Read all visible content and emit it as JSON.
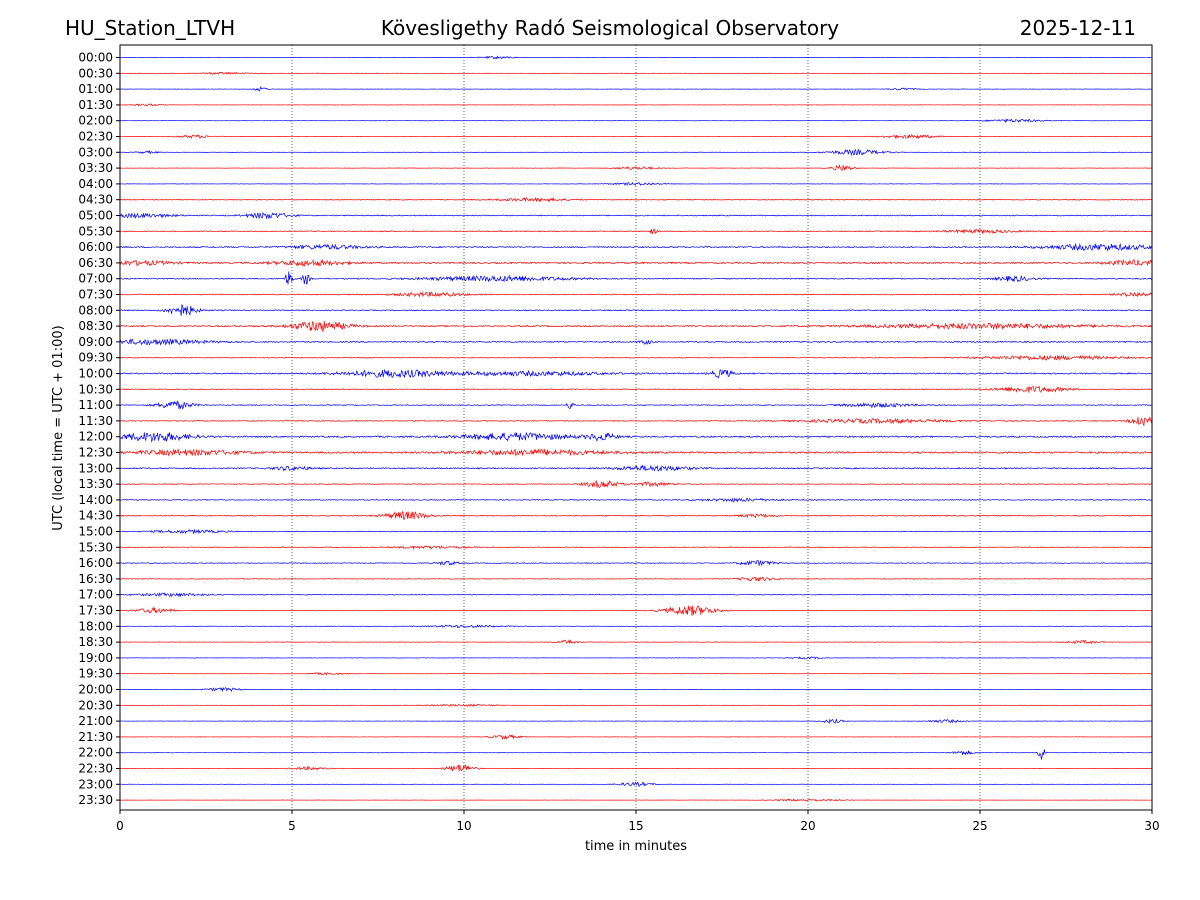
{
  "header": {
    "station": "HU_Station_LTVH",
    "observatory": "Kövesligethy Radó Seismological Observatory",
    "date": "2025-12-11"
  },
  "chart_data": {
    "type": "line",
    "title": "Kövesligethy Radó Seismological Observatory",
    "xlabel": "time in minutes",
    "ylabel": "UTC (local time = UTC + 01:00)",
    "xlim": [
      0,
      30
    ],
    "x_ticks": [
      "0",
      "5",
      "10",
      "15",
      "20",
      "25",
      "30"
    ],
    "x_tick_values": [
      0,
      5,
      10,
      15,
      20,
      25,
      30
    ],
    "grid": "vertical dotted at each x tick",
    "colors": {
      "even_row": "#0000ff",
      "odd_row": "#ff0000",
      "axes": "#000000"
    },
    "rows": [
      {
        "label": "00:00",
        "noise": 0.15,
        "events": [
          [
            11.0,
            0.5,
            1.2
          ]
        ]
      },
      {
        "label": "00:30",
        "noise": 0.15,
        "events": [
          [
            3.0,
            0.6,
            1.0
          ]
        ]
      },
      {
        "label": "01:00",
        "noise": 0.15,
        "events": [
          [
            4.1,
            0.2,
            2.0
          ],
          [
            22.8,
            0.4,
            1.0
          ]
        ]
      },
      {
        "label": "01:30",
        "noise": 0.15,
        "events": [
          [
            0.8,
            0.4,
            1.0
          ]
        ]
      },
      {
        "label": "02:00",
        "noise": 0.15,
        "events": [
          [
            26.0,
            0.8,
            1.5
          ]
        ]
      },
      {
        "label": "02:30",
        "noise": 0.18,
        "events": [
          [
            2.2,
            0.5,
            1.5
          ],
          [
            23.0,
            0.8,
            1.8
          ]
        ]
      },
      {
        "label": "03:00",
        "noise": 0.2,
        "events": [
          [
            21.4,
            0.8,
            2.5
          ],
          [
            0.8,
            0.3,
            1.2
          ]
        ]
      },
      {
        "label": "03:30",
        "noise": 0.2,
        "events": [
          [
            21.0,
            0.3,
            3.0
          ],
          [
            15.0,
            0.6,
            1.5
          ]
        ]
      },
      {
        "label": "04:00",
        "noise": 0.18,
        "events": [
          [
            15.0,
            0.8,
            1.2
          ]
        ]
      },
      {
        "label": "04:30",
        "noise": 0.4,
        "events": [
          [
            12.0,
            1.0,
            1.5
          ]
        ]
      },
      {
        "label": "05:00",
        "noise": 0.5,
        "events": [
          [
            4.3,
            0.6,
            3.0
          ],
          [
            0.5,
            1.0,
            2.0
          ]
        ]
      },
      {
        "label": "05:30",
        "noise": 0.45,
        "events": [
          [
            15.5,
            0.1,
            2.5
          ],
          [
            25.0,
            1.0,
            1.5
          ]
        ]
      },
      {
        "label": "06:00",
        "noise": 0.6,
        "events": [
          [
            28.5,
            1.5,
            3.0
          ],
          [
            6.0,
            1.0,
            2.0
          ]
        ]
      },
      {
        "label": "06:30",
        "noise": 0.7,
        "events": [
          [
            0.5,
            1.0,
            2.0
          ],
          [
            5.5,
            1.0,
            2.5
          ],
          [
            29.5,
            0.8,
            2.5
          ]
        ]
      },
      {
        "label": "07:00",
        "noise": 0.5,
        "events": [
          [
            4.9,
            0.1,
            8.0
          ],
          [
            5.4,
            0.1,
            6.0
          ],
          [
            11.0,
            2.0,
            2.5
          ],
          [
            26.0,
            0.5,
            2.5
          ]
        ]
      },
      {
        "label": "07:30",
        "noise": 0.45,
        "events": [
          [
            9.0,
            1.0,
            2.0
          ],
          [
            29.5,
            0.5,
            2.0
          ]
        ]
      },
      {
        "label": "08:00",
        "noise": 0.5,
        "events": [
          [
            1.8,
            0.4,
            6.0
          ]
        ]
      },
      {
        "label": "08:30",
        "noise": 0.6,
        "events": [
          [
            5.8,
            0.8,
            5.0
          ],
          [
            25.0,
            3.0,
            2.5
          ]
        ]
      },
      {
        "label": "09:00",
        "noise": 0.55,
        "events": [
          [
            1.0,
            1.5,
            2.5
          ],
          [
            15.3,
            0.2,
            2.0
          ]
        ]
      },
      {
        "label": "09:30",
        "noise": 0.35,
        "events": [
          [
            27.0,
            2.0,
            2.0
          ]
        ]
      },
      {
        "label": "10:00",
        "noise": 0.6,
        "events": [
          [
            8.0,
            1.5,
            3.5
          ],
          [
            17.5,
            0.3,
            4.0
          ],
          [
            12.0,
            2.0,
            2.0
          ]
        ]
      },
      {
        "label": "10:30",
        "noise": 0.4,
        "events": [
          [
            26.5,
            1.0,
            3.0
          ]
        ]
      },
      {
        "label": "11:00",
        "noise": 0.4,
        "events": [
          [
            1.6,
            0.5,
            4.0
          ],
          [
            13.1,
            0.1,
            4.0
          ],
          [
            22.0,
            1.0,
            2.0
          ]
        ]
      },
      {
        "label": "11:30",
        "noise": 0.4,
        "events": [
          [
            29.7,
            0.3,
            6.0
          ],
          [
            22.0,
            2.0,
            2.0
          ]
        ]
      },
      {
        "label": "12:00",
        "noise": 0.7,
        "events": [
          [
            1.0,
            1.0,
            4.5
          ],
          [
            11.5,
            1.5,
            3.5
          ],
          [
            14.0,
            0.4,
            3.5
          ]
        ]
      },
      {
        "label": "12:30",
        "noise": 0.8,
        "events": [
          [
            2.0,
            1.5,
            2.5
          ],
          [
            12.0,
            2.0,
            2.5
          ]
        ]
      },
      {
        "label": "13:00",
        "noise": 0.6,
        "events": [
          [
            15.5,
            1.0,
            2.5
          ],
          [
            5.0,
            0.5,
            2.0
          ]
        ]
      },
      {
        "label": "13:30",
        "noise": 0.35,
        "events": [
          [
            14.0,
            0.5,
            3.5
          ],
          [
            15.5,
            0.5,
            2.0
          ]
        ]
      },
      {
        "label": "14:00",
        "noise": 0.4,
        "events": [
          [
            18.0,
            1.0,
            1.5
          ]
        ]
      },
      {
        "label": "14:30",
        "noise": 0.45,
        "events": [
          [
            8.3,
            0.6,
            4.0
          ],
          [
            18.5,
            0.5,
            1.5
          ]
        ]
      },
      {
        "label": "15:00",
        "noise": 0.35,
        "events": [
          [
            2.0,
            1.0,
            1.5
          ]
        ]
      },
      {
        "label": "15:30",
        "noise": 0.35,
        "events": [
          [
            9.0,
            1.0,
            1.2
          ]
        ]
      },
      {
        "label": "16:00",
        "noise": 0.35,
        "events": [
          [
            18.5,
            0.5,
            2.5
          ],
          [
            9.5,
            0.3,
            2.0
          ]
        ]
      },
      {
        "label": "16:30",
        "noise": 0.3,
        "events": [
          [
            18.5,
            0.5,
            2.0
          ]
        ]
      },
      {
        "label": "17:00",
        "noise": 0.3,
        "events": [
          [
            1.5,
            1.0,
            1.5
          ]
        ]
      },
      {
        "label": "17:30",
        "noise": 0.3,
        "events": [
          [
            16.6,
            0.7,
            5.0
          ],
          [
            1.0,
            0.5,
            2.5
          ]
        ]
      },
      {
        "label": "18:00",
        "noise": 0.25,
        "events": [
          [
            10.0,
            1.0,
            1.2
          ]
        ]
      },
      {
        "label": "18:30",
        "noise": 0.2,
        "events": [
          [
            13.0,
            0.3,
            2.0
          ],
          [
            28.0,
            0.5,
            1.5
          ]
        ]
      },
      {
        "label": "19:00",
        "noise": 0.15,
        "events": [
          [
            20.0,
            0.5,
            1.0
          ]
        ]
      },
      {
        "label": "19:30",
        "noise": 0.15,
        "events": [
          [
            6.0,
            0.5,
            1.0
          ]
        ]
      },
      {
        "label": "20:00",
        "noise": 0.15,
        "events": [
          [
            3.0,
            0.5,
            1.8
          ]
        ]
      },
      {
        "label": "20:30",
        "noise": 0.12,
        "events": [
          [
            10.0,
            1.0,
            1.0
          ]
        ]
      },
      {
        "label": "21:00",
        "noise": 0.15,
        "events": [
          [
            20.7,
            0.3,
            2.0
          ],
          [
            24.0,
            0.5,
            1.5
          ]
        ]
      },
      {
        "label": "21:30",
        "noise": 0.15,
        "events": [
          [
            11.2,
            0.4,
            2.0
          ]
        ]
      },
      {
        "label": "22:00",
        "noise": 0.15,
        "events": [
          [
            26.8,
            0.1,
            8.0
          ],
          [
            24.5,
            0.3,
            2.0
          ]
        ]
      },
      {
        "label": "22:30",
        "noise": 0.2,
        "events": [
          [
            9.9,
            0.4,
            4.0
          ],
          [
            5.5,
            0.5,
            1.5
          ]
        ]
      },
      {
        "label": "23:00",
        "noise": 0.15,
        "events": [
          [
            15.0,
            0.5,
            2.0
          ]
        ]
      },
      {
        "label": "23:30",
        "noise": 0.12,
        "events": [
          [
            20.0,
            1.0,
            1.0
          ]
        ]
      }
    ]
  }
}
